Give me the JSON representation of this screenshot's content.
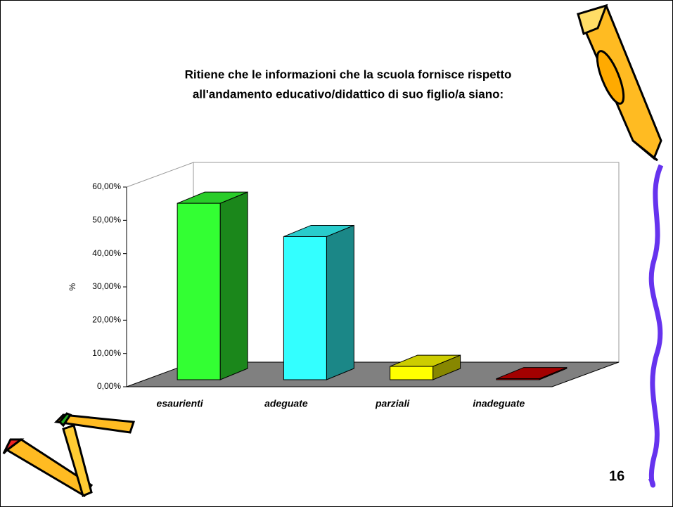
{
  "chart_data": {
    "type": "bar3d",
    "title": [
      "Ritiene che le informazioni che la scuola fornisce rispetto",
      "all'andamento educativo/didattico di suo figlio/a siano:"
    ],
    "y_label": "%",
    "categories": [
      "esaurienti",
      "adeguate",
      "parziali",
      "inadeguate"
    ],
    "values": [
      53,
      43,
      4,
      0.3
    ],
    "colors": [
      "#33ff33",
      "#33ffff",
      "#ffff00",
      "#cc0000"
    ],
    "ylim": [
      0,
      60
    ],
    "yticks": [
      {
        "value": 0,
        "label": "0,00%"
      },
      {
        "value": 10,
        "label": "10,00%"
      },
      {
        "value": 20,
        "label": "20,00%"
      },
      {
        "value": 30,
        "label": "30,00%"
      },
      {
        "value": 40,
        "label": "40,00%"
      },
      {
        "value": 50,
        "label": "50,00%"
      },
      {
        "value": 60,
        "label": "60,00%"
      }
    ],
    "floor_color": "#808080"
  },
  "slide_number": "16"
}
